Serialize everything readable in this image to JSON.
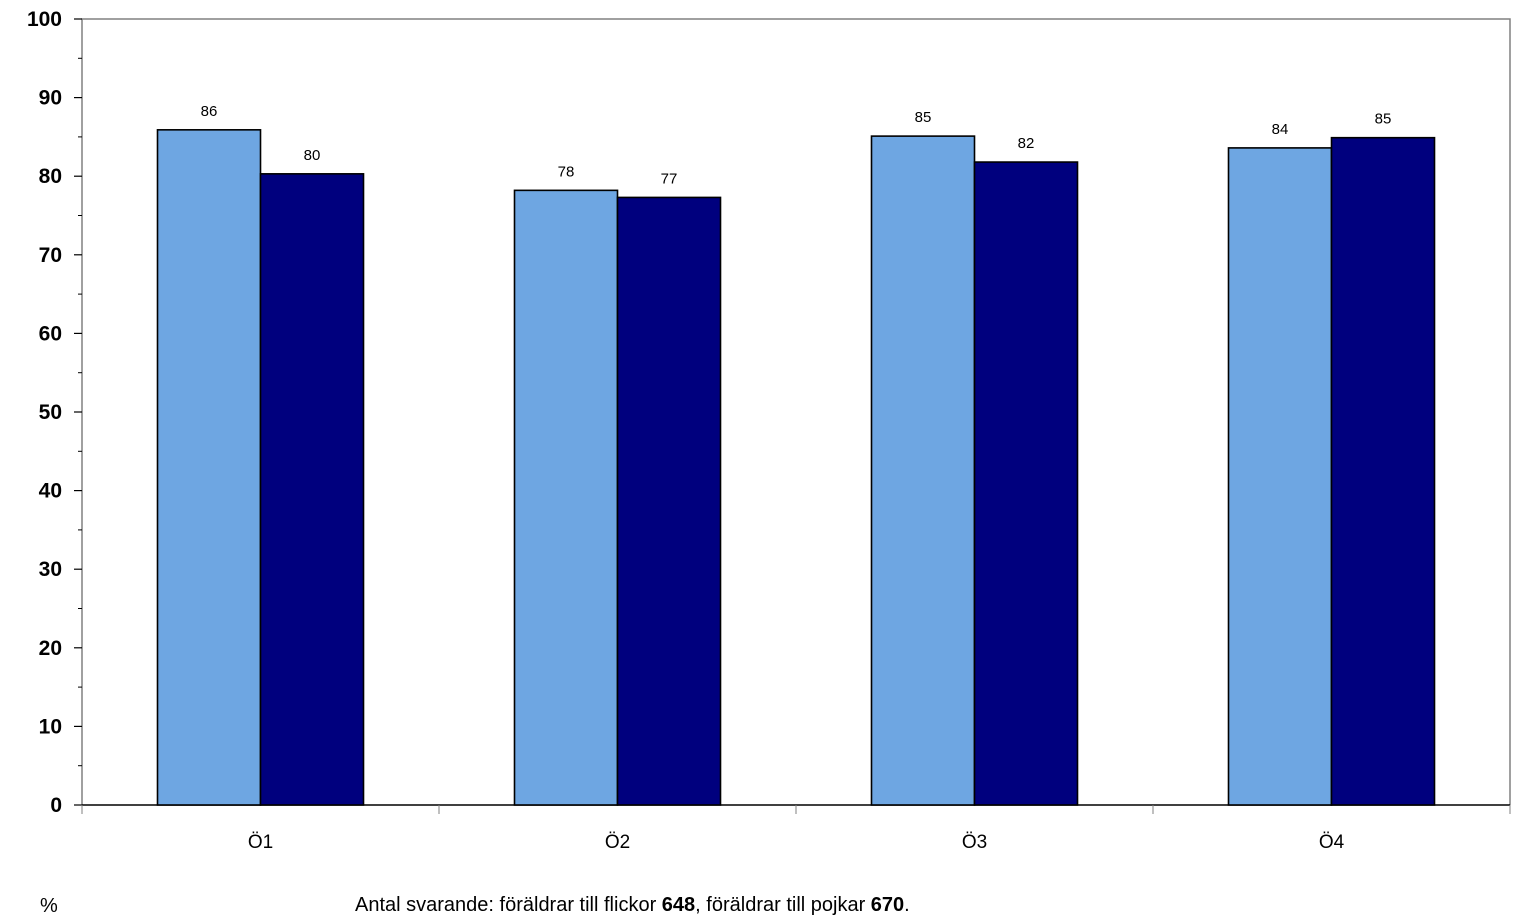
{
  "chart_data": {
    "type": "bar",
    "categories": [
      "Ö1",
      "Ö2",
      "Ö3",
      "Ö4"
    ],
    "series": [
      {
        "values": [
          86,
          78,
          85,
          84
        ],
        "color": "#6ea6e2"
      },
      {
        "values": [
          80,
          77,
          82,
          85
        ],
        "color": "#00007e"
      }
    ],
    "plot_values": [
      [
        85.9,
        78.2,
        85.1,
        83.6
      ],
      [
        80.3,
        77.3,
        81.8,
        84.9
      ]
    ],
    "ylim": [
      0,
      100
    ],
    "yticks": [
      0,
      10,
      20,
      30,
      40,
      50,
      60,
      70,
      80,
      90,
      100
    ],
    "grid": false,
    "legend": "none",
    "bar_border_color": "#000000"
  },
  "footer": {
    "unit": "%",
    "note_parts": {
      "p1": "Antal svarande: föräldrar till flickor ",
      "n1": "648",
      "p2": ", föräldrar till pojkar ",
      "n2": "670",
      "p3": "."
    }
  }
}
